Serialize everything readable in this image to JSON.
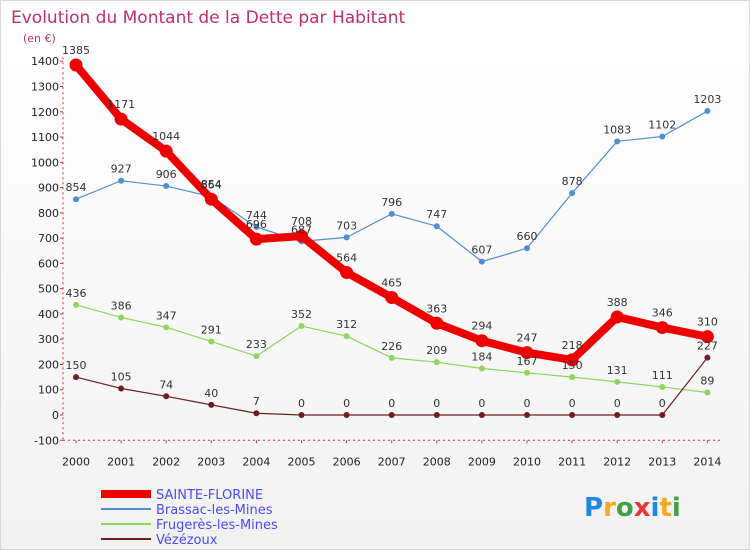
{
  "header": {
    "title": "Evolution du Montant de la Dette par Habitant",
    "unit": "(en €)"
  },
  "brand": {
    "text": "Proxiti",
    "letters": [
      {
        "ch": "P",
        "color": "#1e88e5"
      },
      {
        "ch": "r",
        "color": "#f9a825"
      },
      {
        "ch": "o",
        "color": "#43a047"
      },
      {
        "ch": "x",
        "color": "#e53935"
      },
      {
        "ch": "i",
        "color": "#1e88e5"
      },
      {
        "ch": "t",
        "color": "#f9a825"
      },
      {
        "ch": "i",
        "color": "#43a047"
      }
    ]
  },
  "chart_data": {
    "type": "line",
    "title": "Evolution du Montant de la Dette par Habitant",
    "ylabel": "(en €)",
    "xlabel": "",
    "x": [
      "2000",
      "2001",
      "2002",
      "2003",
      "2004",
      "2005",
      "2006",
      "2007",
      "2008",
      "2009",
      "2010",
      "2011",
      "2012",
      "2013",
      "2014"
    ],
    "ylim": [
      -100,
      1400
    ],
    "yticks": [
      -100,
      0,
      100,
      200,
      300,
      400,
      500,
      600,
      700,
      800,
      900,
      1000,
      1100,
      1200,
      1300,
      1400
    ],
    "grid": false,
    "legend_position": "bottom-left",
    "series": [
      {
        "name": "SAINTE-FLORINE",
        "color": "#ee0000",
        "emphasis": true,
        "values": [
          1385,
          1171,
          1044,
          854,
          696,
          708,
          564,
          465,
          363,
          294,
          247,
          218,
          388,
          346,
          310
        ]
      },
      {
        "name": "Brassac-les-Mines",
        "color": "#4f8fd0",
        "emphasis": false,
        "values": [
          854,
          927,
          906,
          864,
          744,
          687,
          703,
          796,
          747,
          607,
          660,
          878,
          1083,
          1102,
          1203
        ]
      },
      {
        "name": "Frugerès-les-Mines",
        "color": "#8ed65a",
        "emphasis": false,
        "values": [
          436,
          386,
          347,
          291,
          233,
          352,
          312,
          226,
          209,
          184,
          167,
          150,
          131,
          111,
          89
        ]
      },
      {
        "name": "Vézézoux",
        "color": "#6b1f1f",
        "emphasis": false,
        "values": [
          150,
          105,
          74,
          40,
          7,
          0,
          0,
          0,
          0,
          0,
          0,
          0,
          0,
          0,
          227
        ]
      }
    ]
  }
}
